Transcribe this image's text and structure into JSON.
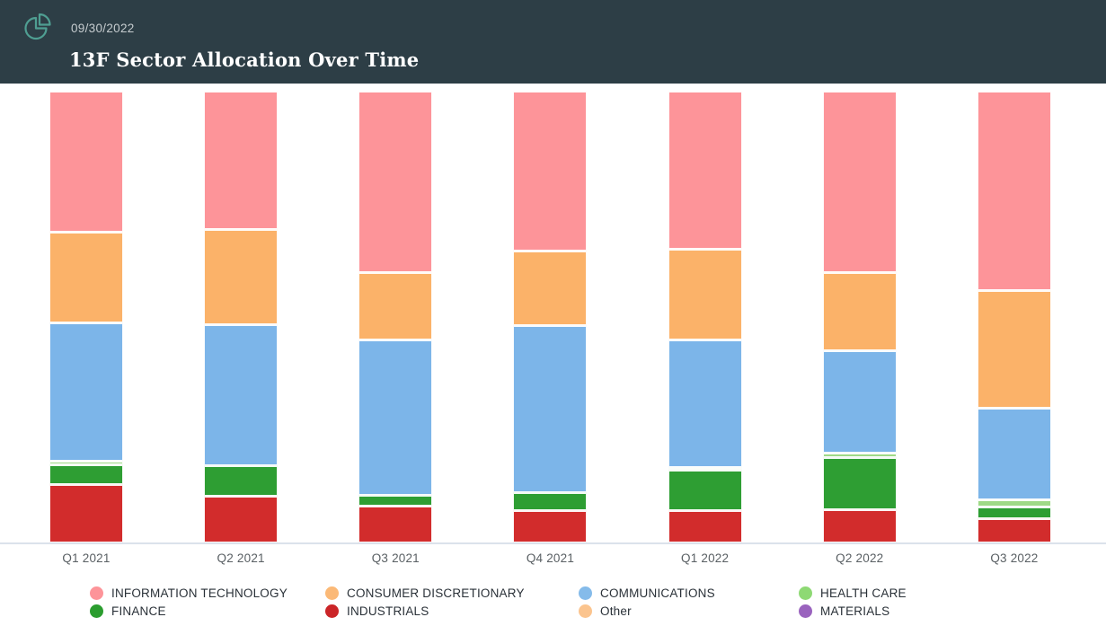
{
  "header": {
    "date": "09/30/2022",
    "title": "13F Sector Allocation Over Time",
    "icon": "pie-chart-icon",
    "bg_color": "#2d3e46",
    "icon_color": "#4f9e92"
  },
  "chart_data": {
    "type": "bar",
    "stacked": true,
    "unit": "percent_of_portfolio",
    "title": "13F Sector Allocation Over Time",
    "xlabel": "",
    "ylabel": "",
    "ylim": [
      0,
      100
    ],
    "grid": false,
    "legend_position": "bottom",
    "categories": [
      "Q1 2021",
      "Q2 2021",
      "Q3 2021",
      "Q4 2021",
      "Q1 2022",
      "Q2 2022",
      "Q3 2022"
    ],
    "series_order_note": "series listed top-to-bottom as stacked in each bar",
    "series": [
      {
        "name": "INFORMATION TECHNOLOGY",
        "color": "#fd9499",
        "values": [
          31.0,
          30.4,
          40.1,
          35.3,
          35.0,
          40.1,
          44.1
        ]
      },
      {
        "name": "CONSUMER DISCRETIONARY",
        "color": "#fbb269",
        "values": [
          20.1,
          21.1,
          14.9,
          16.5,
          20.1,
          17.3,
          26.1
        ]
      },
      {
        "name": "COMMUNICATIONS",
        "color": "#7cb5e9",
        "values": [
          30.8,
          31.4,
          34.4,
          37.1,
          28.4,
          22.7,
          20.3
        ]
      },
      {
        "name": "HEALTH CARE",
        "color": "#9fda87",
        "values": [
          0.8,
          0.0,
          0.0,
          0.0,
          0.4,
          1.0,
          1.5
        ]
      },
      {
        "name": "FINANCE",
        "color": "#2e9e33",
        "values": [
          4.3,
          6.8,
          2.4,
          3.9,
          9.0,
          11.5,
          2.7
        ]
      },
      {
        "name": "INDUSTRIALS",
        "color": "#d22c2c",
        "values": [
          13.0,
          10.3,
          8.2,
          7.2,
          7.1,
          7.4,
          5.3
        ]
      },
      {
        "name": "Other",
        "color": "#fbc48e",
        "values": [
          0,
          0,
          0,
          0,
          0,
          0,
          0
        ]
      },
      {
        "name": "MATERIALS",
        "color": "#9a63be",
        "values": [
          0,
          0,
          0,
          0,
          0,
          0,
          0
        ]
      }
    ]
  },
  "legend": {
    "items": [
      {
        "label": "INFORMATION TECHNOLOGY",
        "color": "#fd9499"
      },
      {
        "label": "CONSUMER DISCRETIONARY",
        "color": "#fbb977"
      },
      {
        "label": "COMMUNICATIONS",
        "color": "#85bbea"
      },
      {
        "label": "HEALTH CARE",
        "color": "#8ed974"
      },
      {
        "label": "FINANCE",
        "color": "#2b9d2f"
      },
      {
        "label": "INDUSTRIALS",
        "color": "#cb2528"
      },
      {
        "label": "Other",
        "color": "#fbc48e"
      },
      {
        "label": "MATERIALS",
        "color": "#9a63be"
      }
    ]
  }
}
